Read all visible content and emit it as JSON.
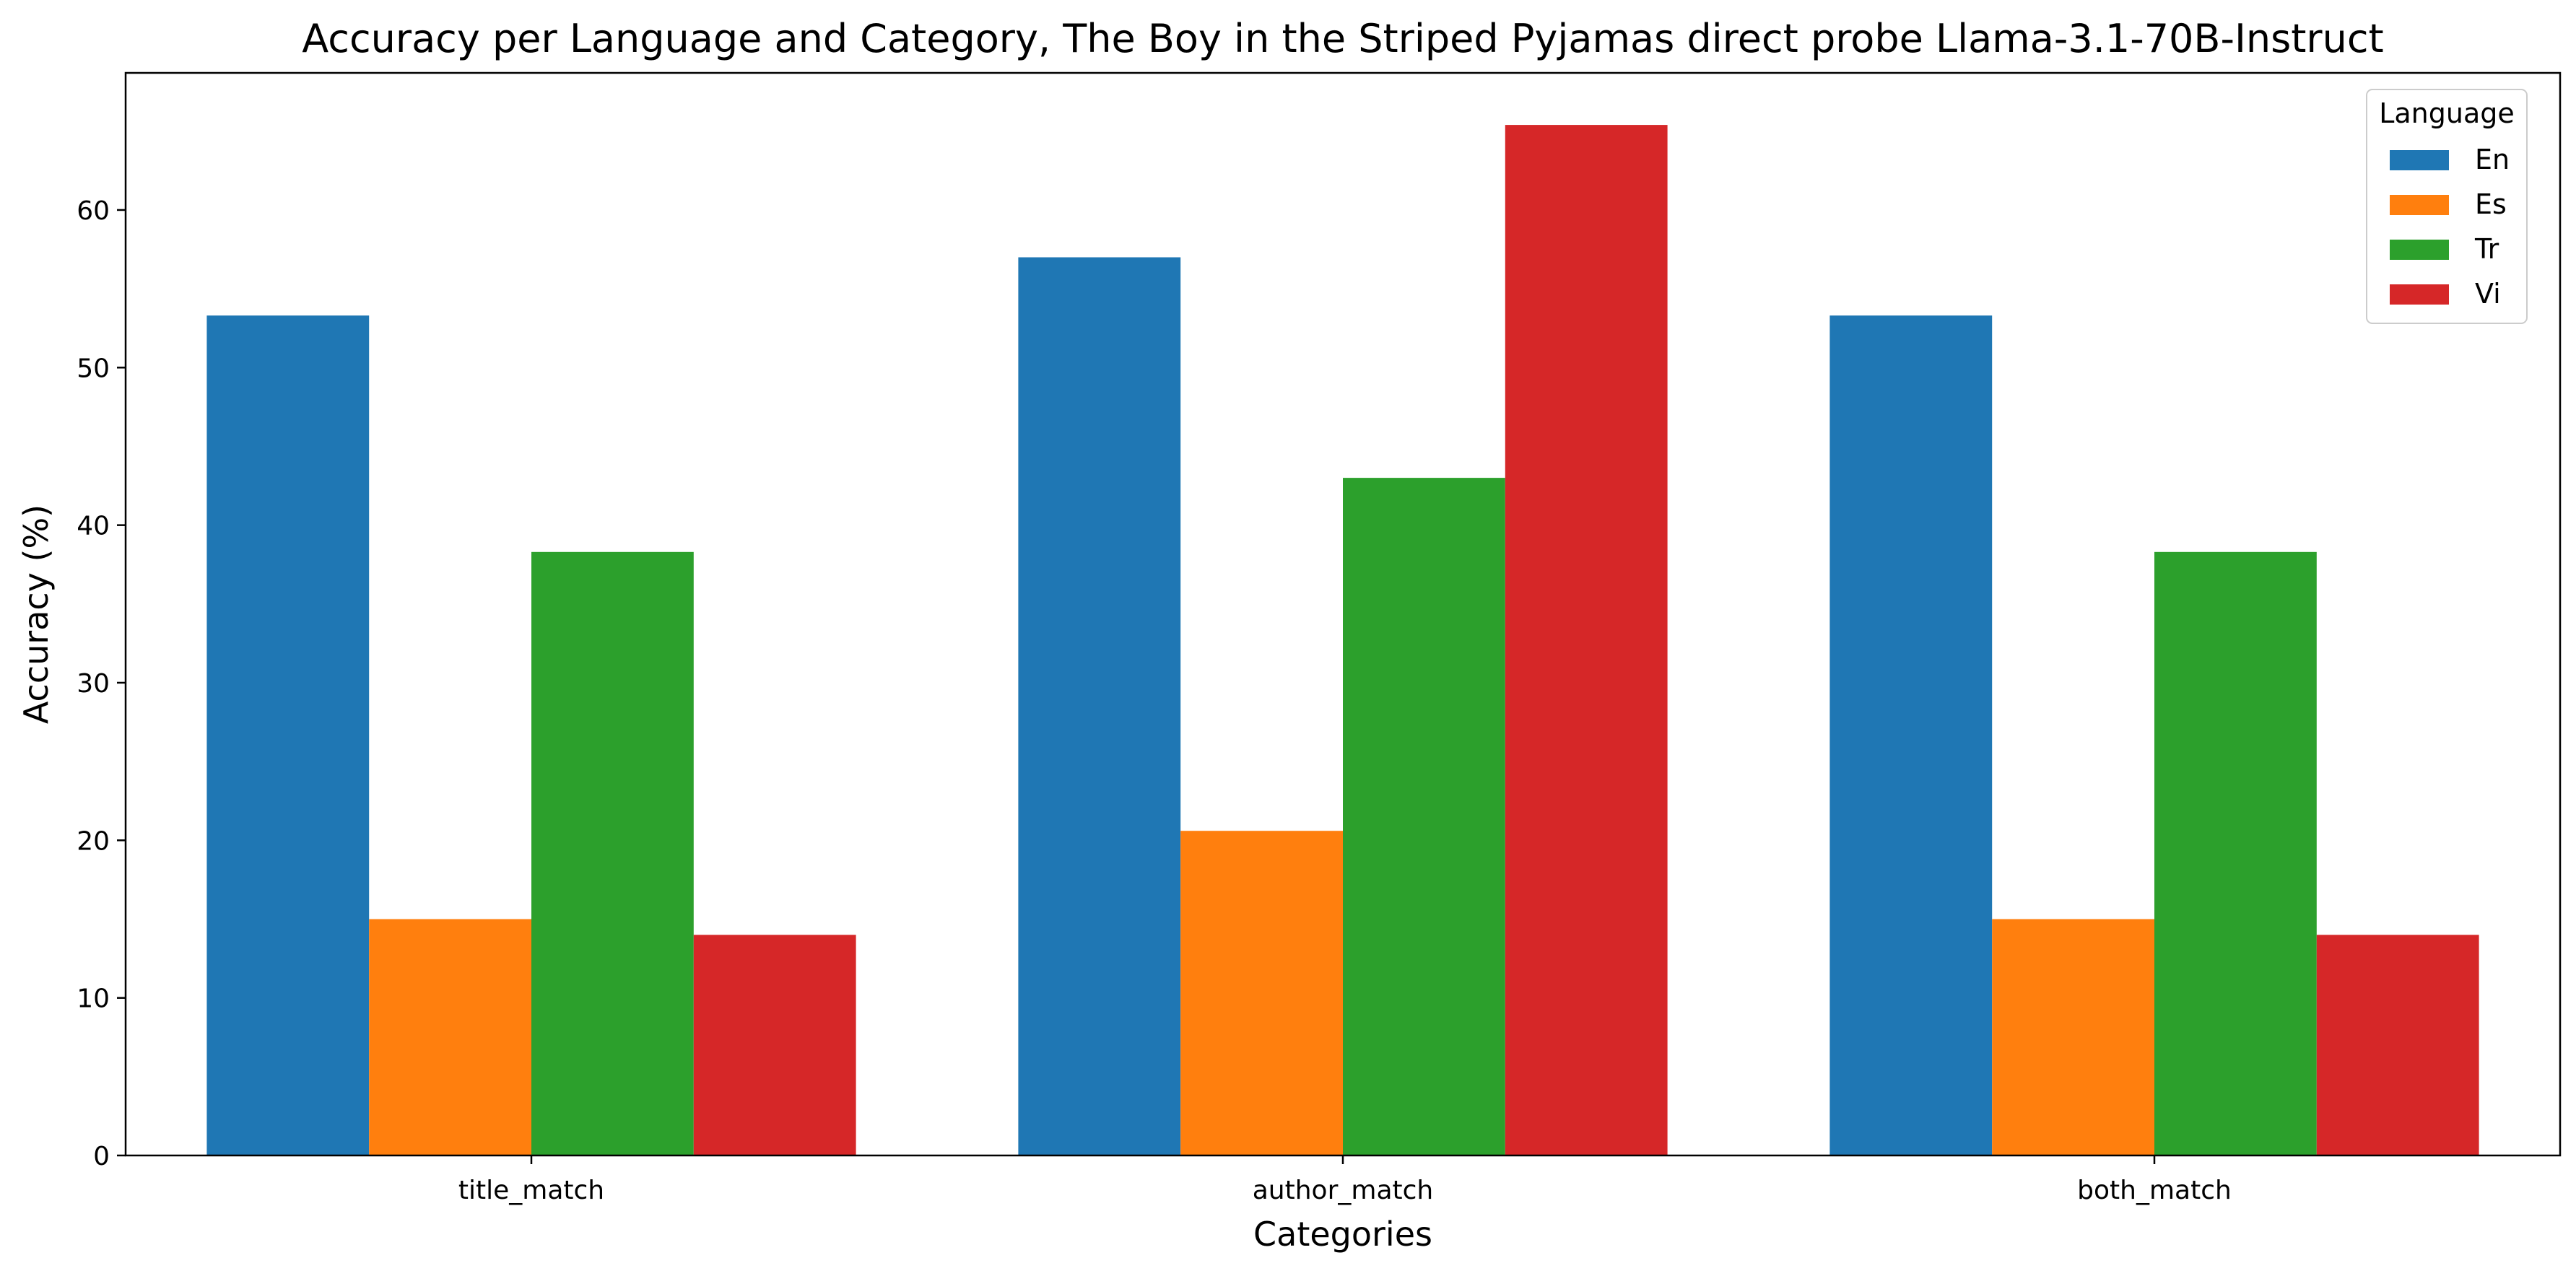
{
  "chart_data": {
    "type": "bar",
    "title": "Accuracy per Language and Category, The Boy in the Striped Pyjamas direct probe Llama-3.1-70B-Instruct",
    "xlabel": "Categories",
    "ylabel": "Accuracy (%)",
    "categories": [
      "title_match",
      "author_match",
      "both_match"
    ],
    "series": [
      {
        "name": "En",
        "color": "#1f77b4",
        "values": [
          53.3,
          57.0,
          53.3
        ]
      },
      {
        "name": "Es",
        "color": "#ff7f0e",
        "values": [
          15.0,
          20.6,
          15.0
        ]
      },
      {
        "name": "Tr",
        "color": "#2ca02c",
        "values": [
          38.3,
          43.0,
          38.3
        ]
      },
      {
        "name": "Vi",
        "color": "#d62728",
        "values": [
          14.0,
          65.4,
          14.0
        ]
      }
    ],
    "ylim": [
      0,
      68.7
    ],
    "yticks": [
      0,
      10,
      20,
      30,
      40,
      50,
      60
    ],
    "grid": false,
    "legend": {
      "title": "Language",
      "placement": "top-right"
    }
  }
}
